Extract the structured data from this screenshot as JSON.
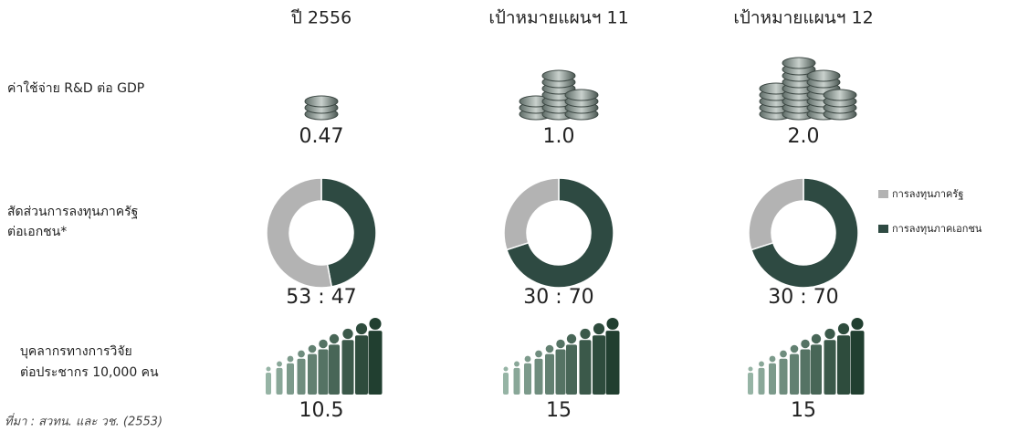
{
  "columns": [
    "ปี 2556",
    "เป้าหมายแผนฯ 11",
    "เป้าหมายแผนฯ 12"
  ],
  "rd_gdp": {
    "label": "ค่าใช้จ่าย R&D ต่อ GDP",
    "values": [
      "0.47",
      "1.0",
      "2.0"
    ]
  },
  "investment": {
    "label": [
      "สัดส่วนการลงทุนภาครัฐ",
      "ต่อเอกชน*"
    ],
    "ratio_labels": [
      "53 : 47",
      "30 : 70",
      "30 : 70"
    ],
    "public": [
      53,
      30,
      30
    ],
    "private": [
      47,
      70,
      70
    ],
    "legend": [
      {
        "name": "การลงทุนภาครัฐ",
        "color": "#b3b3b3"
      },
      {
        "name": "การลงทุนภาคเอกชน",
        "color": "#2e4a42"
      }
    ]
  },
  "researchers": {
    "label": [
      "บุคลากรทางการวิจัย",
      "ต่อประชากร 10,000 คน"
    ],
    "values": [
      "10.5",
      "15",
      "15"
    ]
  },
  "source": "ที่มา : สวทน. และ วช. (2553)"
}
